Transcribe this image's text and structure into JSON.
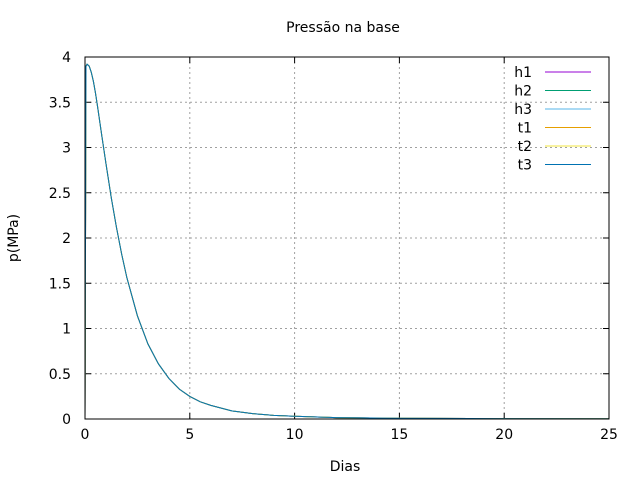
{
  "chart_data": {
    "type": "line",
    "title": "Pressão na base",
    "xlabel": "Dias",
    "ylabel": "p(MPa)",
    "xlim": [
      0,
      25
    ],
    "ylim": [
      0,
      4
    ],
    "xticks": [
      0,
      5,
      10,
      15,
      20,
      25
    ],
    "yticks": [
      0,
      0.5,
      1,
      1.5,
      2,
      2.5,
      3,
      3.5,
      4
    ],
    "xtick_labels": [
      "0",
      "5",
      "10",
      "15",
      "20",
      "25"
    ],
    "ytick_labels": [
      "0",
      "0.5",
      "1",
      "1.5",
      "2",
      "2.5",
      "3",
      "3.5",
      "4"
    ],
    "grid": true,
    "legend_position": "top-right",
    "series": [
      {
        "name": "h1",
        "color": "#9400d3",
        "x": [
          0,
          0.05,
          0.1,
          0.2,
          0.3,
          0.4,
          0.5,
          0.6,
          0.8,
          1.0,
          1.25,
          1.5,
          1.75,
          2.0,
          2.5,
          3.0,
          3.5,
          4.0,
          4.5,
          5.0,
          5.5,
          6.0,
          7.0,
          8.0,
          9.0,
          10.0,
          12.0,
          15.0,
          20.0,
          25.0
        ],
        "y": [
          0.0,
          3.9,
          3.92,
          3.9,
          3.83,
          3.73,
          3.6,
          3.45,
          3.13,
          2.82,
          2.45,
          2.12,
          1.82,
          1.56,
          1.14,
          0.83,
          0.61,
          0.45,
          0.33,
          0.25,
          0.19,
          0.15,
          0.09,
          0.06,
          0.04,
          0.03,
          0.015,
          0.008,
          0.004,
          0.003
        ]
      },
      {
        "name": "h2",
        "color": "#009e73",
        "x": [
          0,
          0.05,
          0.1,
          0.2,
          0.3,
          0.4,
          0.5,
          0.6,
          0.8,
          1.0,
          1.25,
          1.5,
          1.75,
          2.0,
          2.5,
          3.0,
          3.5,
          4.0,
          4.5,
          5.0,
          5.5,
          6.0,
          7.0,
          8.0,
          9.0,
          10.0,
          12.0,
          15.0,
          20.0,
          25.0
        ],
        "y": [
          0.0,
          3.9,
          3.92,
          3.9,
          3.83,
          3.73,
          3.6,
          3.45,
          3.13,
          2.82,
          2.45,
          2.12,
          1.82,
          1.56,
          1.14,
          0.83,
          0.61,
          0.45,
          0.33,
          0.25,
          0.19,
          0.15,
          0.09,
          0.06,
          0.04,
          0.03,
          0.015,
          0.008,
          0.004,
          0.003
        ]
      },
      {
        "name": "h3",
        "color": "#56b4e9",
        "x": [
          0,
          0.05,
          0.1,
          0.2,
          0.3,
          0.4,
          0.5,
          0.6,
          0.8,
          1.0,
          1.25,
          1.5,
          1.75,
          2.0,
          2.5,
          3.0,
          3.5,
          4.0,
          4.5,
          5.0,
          5.5,
          6.0,
          7.0,
          8.0,
          9.0,
          10.0,
          12.0,
          15.0,
          20.0,
          25.0
        ],
        "y": [
          0.0,
          3.9,
          3.92,
          3.9,
          3.83,
          3.73,
          3.6,
          3.45,
          3.13,
          2.82,
          2.45,
          2.12,
          1.82,
          1.56,
          1.14,
          0.83,
          0.61,
          0.45,
          0.33,
          0.25,
          0.19,
          0.15,
          0.09,
          0.06,
          0.04,
          0.03,
          0.015,
          0.008,
          0.004,
          0.003
        ]
      },
      {
        "name": "t1",
        "color": "#e69f00",
        "x": [
          0,
          0.05,
          0.1,
          0.2,
          0.3,
          0.4,
          0.5,
          0.6,
          0.8,
          1.0,
          1.25,
          1.5,
          1.75,
          2.0,
          2.5,
          3.0,
          3.5,
          4.0,
          4.5,
          5.0,
          5.5,
          6.0,
          7.0,
          8.0,
          9.0,
          10.0,
          12.0,
          15.0,
          20.0,
          25.0
        ],
        "y": [
          0.0,
          3.9,
          3.92,
          3.9,
          3.83,
          3.73,
          3.6,
          3.45,
          3.13,
          2.82,
          2.45,
          2.12,
          1.82,
          1.56,
          1.14,
          0.83,
          0.61,
          0.45,
          0.33,
          0.25,
          0.19,
          0.15,
          0.09,
          0.06,
          0.04,
          0.03,
          0.015,
          0.008,
          0.004,
          0.003
        ]
      },
      {
        "name": "t2",
        "color": "#f0e442",
        "x": [
          0,
          0.05,
          0.1,
          0.2,
          0.3,
          0.4,
          0.5,
          0.6,
          0.8,
          1.0,
          1.25,
          1.5,
          1.75,
          2.0,
          2.5,
          3.0,
          3.5,
          4.0,
          4.5,
          5.0,
          5.5,
          6.0,
          7.0,
          8.0,
          9.0,
          10.0,
          12.0,
          15.0,
          20.0,
          25.0
        ],
        "y": [
          0.0,
          3.9,
          3.92,
          3.9,
          3.83,
          3.73,
          3.6,
          3.45,
          3.13,
          2.82,
          2.45,
          2.12,
          1.82,
          1.56,
          1.14,
          0.83,
          0.61,
          0.45,
          0.33,
          0.25,
          0.19,
          0.15,
          0.09,
          0.06,
          0.04,
          0.03,
          0.015,
          0.008,
          0.004,
          0.003
        ]
      },
      {
        "name": "t3",
        "color": "#0072b2",
        "x": [
          0,
          0.05,
          0.1,
          0.2,
          0.3,
          0.4,
          0.5,
          0.6,
          0.8,
          1.0,
          1.25,
          1.5,
          1.75,
          2.0,
          2.5,
          3.0,
          3.5,
          4.0,
          4.5,
          5.0,
          5.5,
          6.0,
          7.0,
          8.0,
          9.0,
          10.0,
          12.0,
          15.0,
          20.0,
          25.0
        ],
        "y": [
          0.0,
          3.9,
          3.92,
          3.9,
          3.83,
          3.73,
          3.6,
          3.45,
          3.13,
          2.82,
          2.45,
          2.12,
          1.82,
          1.56,
          1.14,
          0.83,
          0.61,
          0.45,
          0.33,
          0.25,
          0.19,
          0.15,
          0.09,
          0.06,
          0.04,
          0.03,
          0.015,
          0.008,
          0.004,
          0.003
        ]
      }
    ]
  }
}
